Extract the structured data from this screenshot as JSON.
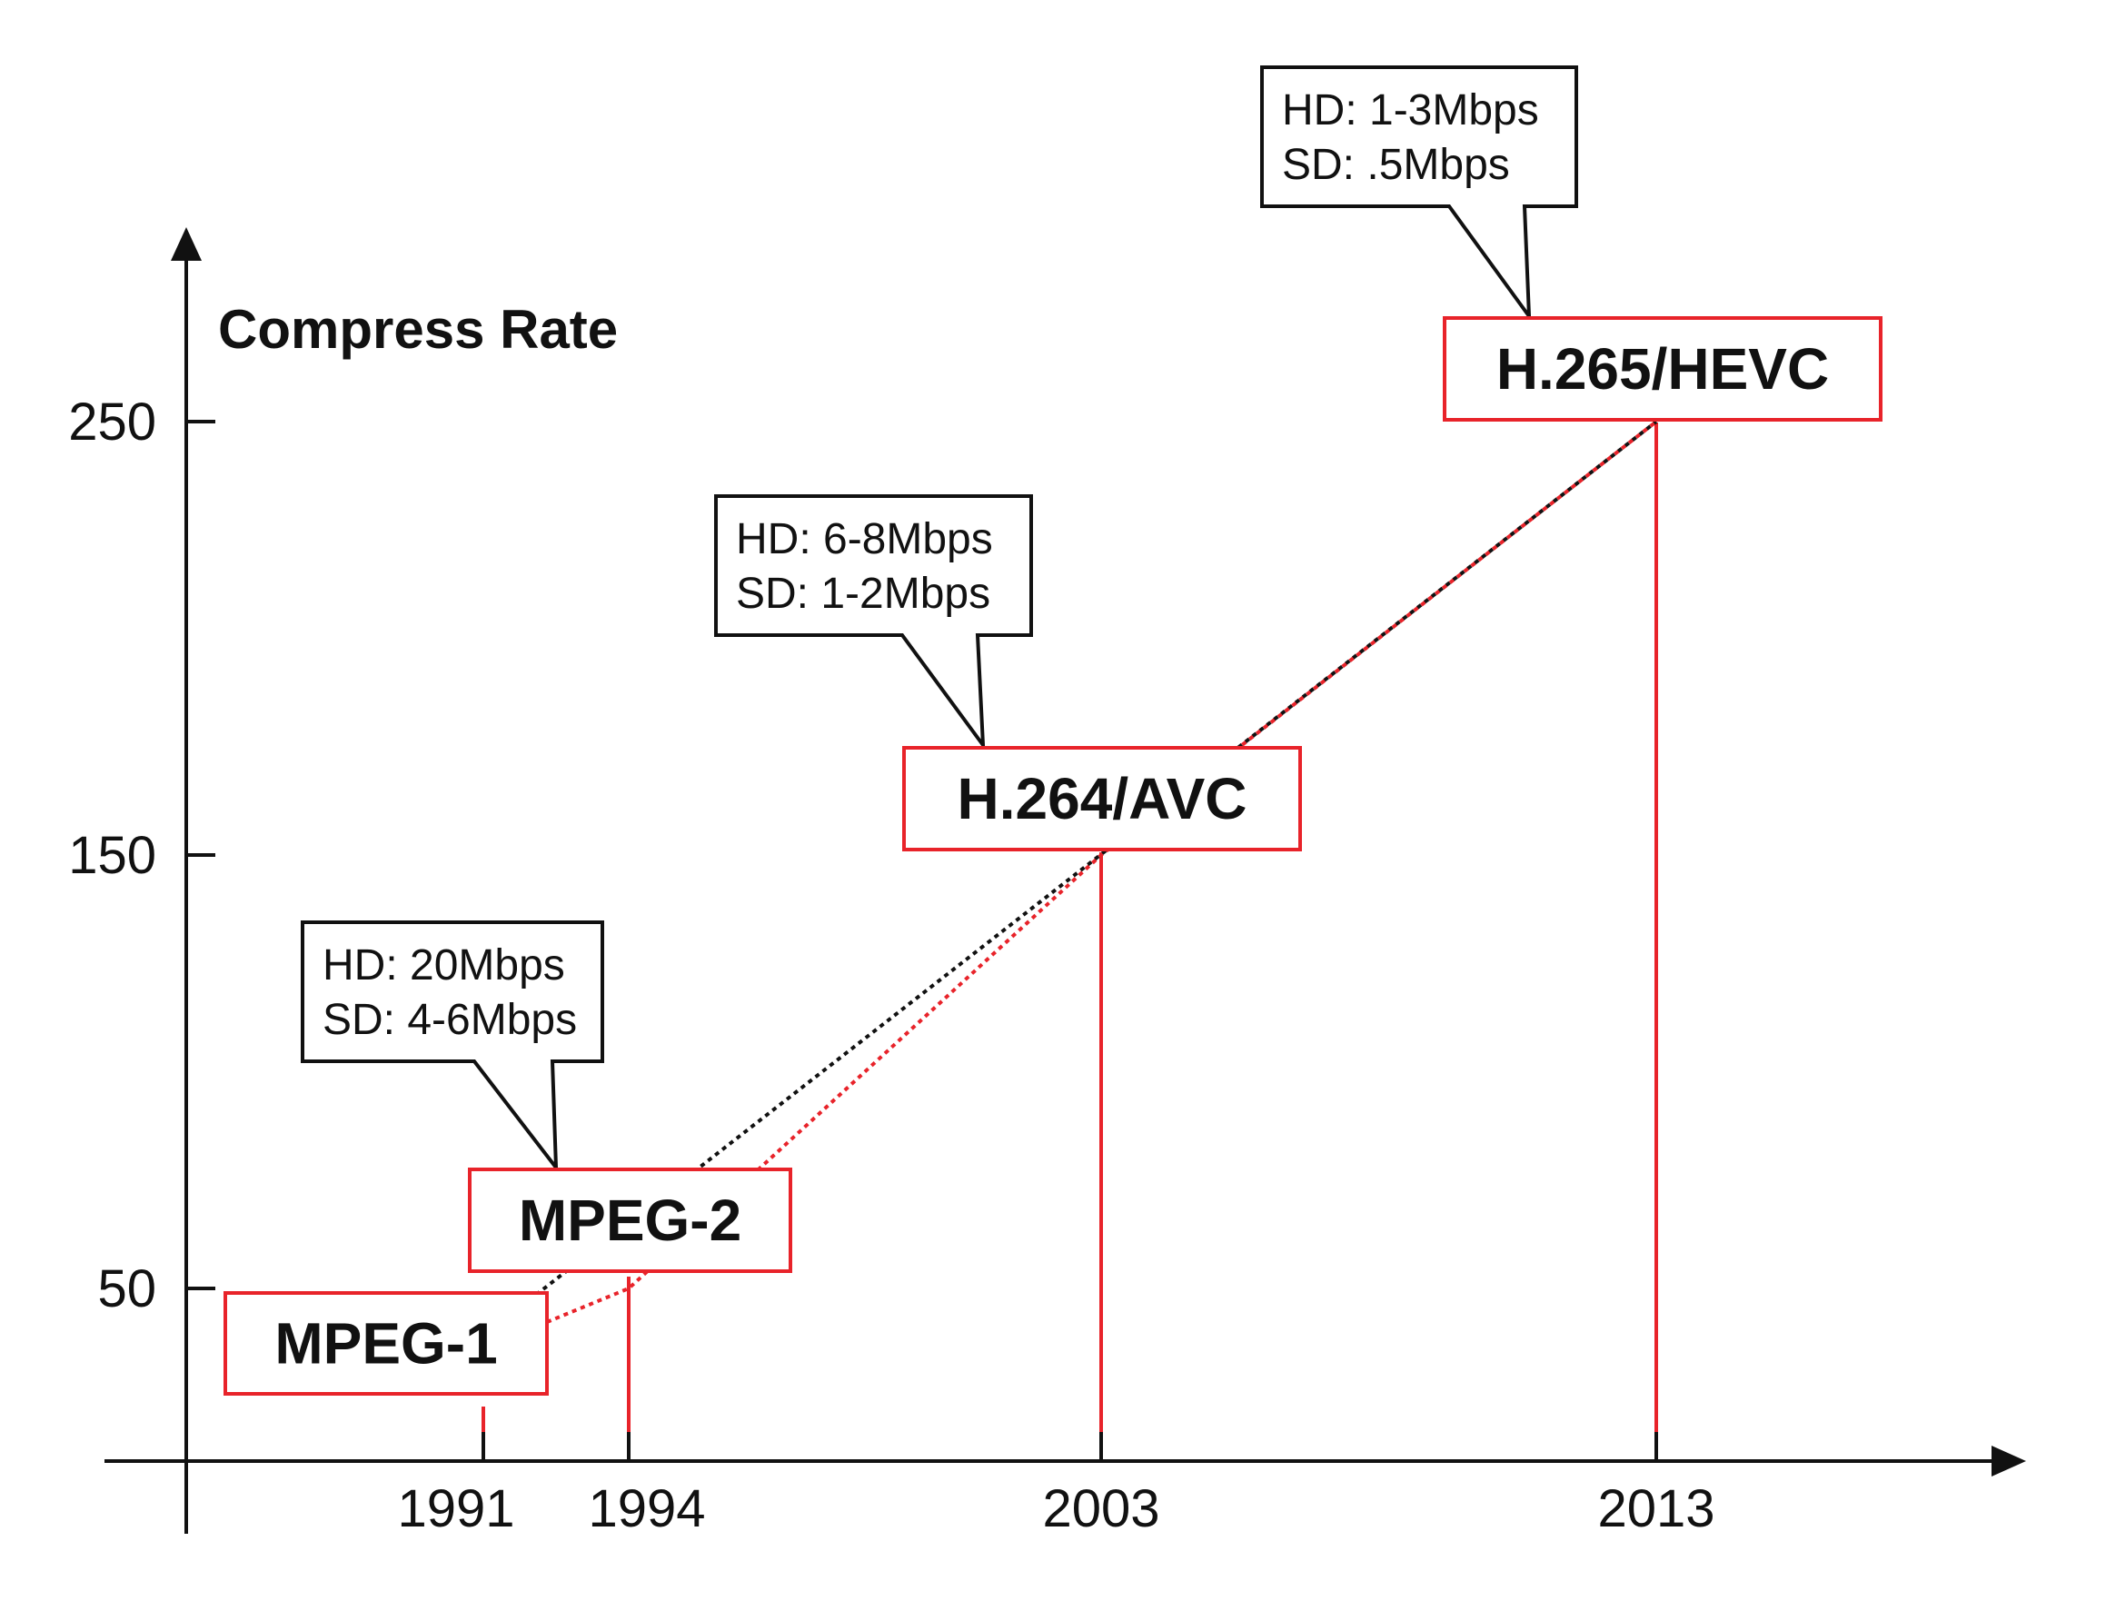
{
  "chart_data": {
    "type": "line",
    "ylabel": "Compress Rate",
    "xlabel": "",
    "y_ticks": [
      "250",
      "150",
      "50"
    ],
    "x_ticks": [
      "1991",
      "1994",
      "2003",
      "2013"
    ],
    "x_tick_values": [
      1991,
      1994,
      2003,
      2013
    ],
    "y_tick_values": [
      250,
      150,
      50
    ],
    "series": [
      {
        "points": [
          {
            "x": 1991,
            "y": 40
          },
          {
            "x": 1994,
            "y": 50
          },
          {
            "x": 2003,
            "y": 150
          },
          {
            "x": 2013,
            "y": 250
          }
        ]
      }
    ],
    "codecs": [
      {
        "label": "MPEG-1",
        "x": 1991,
        "y": 40
      },
      {
        "label": "MPEG-2",
        "x": 1994,
        "y": 50,
        "callout": [
          "HD: 20Mbps",
          "SD: 4-6Mbps"
        ]
      },
      {
        "label": "H.264/AVC",
        "x": 2003,
        "y": 150,
        "callout": [
          "HD: 6-8Mbps",
          "SD: 1-2Mbps"
        ]
      },
      {
        "label": "H.265/HEVC",
        "x": 2013,
        "y": 250,
        "callout": [
          "HD: 1-3Mbps",
          "SD: .5Mbps"
        ]
      }
    ],
    "colors": {
      "accent": "#e8232a",
      "axis": "#111111"
    }
  }
}
